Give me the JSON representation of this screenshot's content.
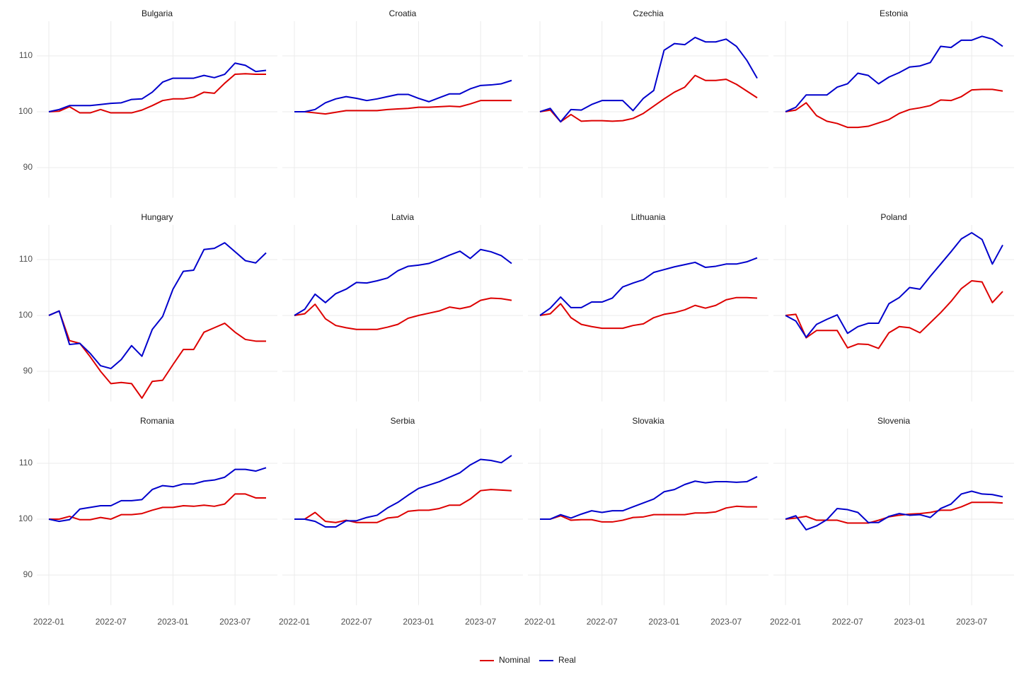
{
  "chart_data": {
    "type": "line",
    "x": [
      "2022-01",
      "2022-02",
      "2022-03",
      "2022-04",
      "2022-05",
      "2022-06",
      "2022-07",
      "2022-08",
      "2022-09",
      "2022-10",
      "2022-11",
      "2022-12",
      "2023-01",
      "2023-02",
      "2023-03",
      "2023-04",
      "2023-05",
      "2023-06",
      "2023-07",
      "2023-08",
      "2023-09",
      "2023-10"
    ],
    "xticks": [
      "2022-01",
      "2022-07",
      "2023-01",
      "2023-07"
    ],
    "ylim": [
      84.6,
      116.2
    ],
    "yticks": [
      90,
      100,
      110
    ],
    "grid": true,
    "legend": "bottom",
    "series": [
      {
        "name": "Nominal",
        "color": "#dd0000"
      },
      {
        "name": "Real",
        "color": "#0000cc"
      }
    ],
    "facets": [
      {
        "title": "Bulgaria",
        "values": [
          [
            100,
            100.1,
            100.9,
            99.8,
            99.8,
            100.4,
            99.8,
            99.8,
            99.8,
            100.3,
            101.1,
            102,
            102.3,
            102.3,
            102.6,
            103.5,
            103.3,
            105.1,
            106.7,
            106.8,
            106.7,
            106.7
          ],
          [
            100,
            100.4,
            101.1,
            101.1,
            101.1,
            101.3,
            101.5,
            101.6,
            102.2,
            102.3,
            103.5,
            105.3,
            106,
            106,
            106,
            106.5,
            106.1,
            106.7,
            108.7,
            108.3,
            107.2,
            107.4
          ]
        ]
      },
      {
        "title": "Croatia",
        "values": [
          [
            100,
            100,
            99.8,
            99.6,
            99.9,
            100.2,
            100.2,
            100.2,
            100.2,
            100.4,
            100.5,
            100.6,
            100.8,
            100.8,
            100.9,
            101,
            100.9,
            101.4,
            102,
            102,
            102,
            102
          ],
          [
            100,
            100,
            100.4,
            101.6,
            102.3,
            102.7,
            102.4,
            102,
            102.3,
            102.7,
            103.1,
            103.1,
            102.4,
            101.8,
            102.5,
            103.2,
            103.2,
            104.1,
            104.7,
            104.8,
            105,
            105.6
          ]
        ]
      },
      {
        "title": "Czechia",
        "values": [
          [
            100,
            100.3,
            98.2,
            99.5,
            98.3,
            98.4,
            98.4,
            98.3,
            98.4,
            98.8,
            99.7,
            101,
            102.3,
            103.5,
            104.4,
            106.5,
            105.6,
            105.6,
            105.8,
            104.9,
            103.7,
            102.5
          ],
          [
            100,
            100.6,
            98.2,
            100.4,
            100.3,
            101.3,
            102,
            102,
            102,
            100.2,
            102.4,
            103.8,
            111,
            112.2,
            112,
            113.3,
            112.5,
            112.5,
            113,
            111.7,
            109.2,
            106
          ]
        ]
      },
      {
        "title": "Estonia",
        "values": [
          [
            100,
            100.3,
            101.6,
            99.3,
            98.3,
            97.9,
            97.2,
            97.2,
            97.4,
            98,
            98.6,
            99.7,
            100.4,
            100.7,
            101.1,
            102.1,
            102,
            102.7,
            103.9,
            104,
            104,
            103.7
          ],
          [
            100,
            100.8,
            103,
            103,
            103,
            104.4,
            105,
            106.9,
            106.5,
            105,
            106.2,
            107,
            108,
            108.2,
            108.8,
            111.7,
            111.5,
            112.8,
            112.8,
            113.5,
            113,
            111.7
          ]
        ]
      },
      {
        "title": "Hungary",
        "values": [
          [
            100,
            100.8,
            95.5,
            95,
            92.6,
            90,
            87.8,
            88,
            87.8,
            85.2,
            88.2,
            88.4,
            91.2,
            93.9,
            93.9,
            97,
            97.8,
            98.6,
            97,
            95.7,
            95.4,
            95.4
          ],
          [
            100,
            100.8,
            94.8,
            95,
            93.2,
            91,
            90.5,
            92.1,
            94.6,
            92.7,
            97.5,
            99.8,
            104.7,
            107.9,
            108.1,
            111.8,
            112,
            113,
            111.4,
            109.8,
            109.4,
            111.2
          ]
        ]
      },
      {
        "title": "Latvia",
        "values": [
          [
            100,
            100.3,
            102,
            99.4,
            98.2,
            97.8,
            97.5,
            97.5,
            97.5,
            97.9,
            98.4,
            99.5,
            100,
            100.4,
            100.8,
            101.5,
            101.2,
            101.6,
            102.7,
            103.1,
            103,
            102.7
          ],
          [
            100,
            101.1,
            103.8,
            102.3,
            103.9,
            104.7,
            105.9,
            105.8,
            106.2,
            106.7,
            108,
            108.8,
            109,
            109.3,
            110,
            110.8,
            111.5,
            110.2,
            111.8,
            111.4,
            110.7,
            109.3
          ]
        ]
      },
      {
        "title": "Lithuania",
        "values": [
          [
            100,
            100.3,
            102.1,
            99.6,
            98.4,
            98,
            97.7,
            97.7,
            97.7,
            98.2,
            98.5,
            99.6,
            100.2,
            100.5,
            101,
            101.8,
            101.3,
            101.8,
            102.8,
            103.2,
            103.2,
            103.1
          ],
          [
            100,
            101.3,
            103.3,
            101.4,
            101.4,
            102.4,
            102.4,
            103.1,
            105.1,
            105.8,
            106.4,
            107.7,
            108.2,
            108.7,
            109.1,
            109.5,
            108.6,
            108.8,
            109.2,
            109.2,
            109.6,
            110.3
          ]
        ]
      },
      {
        "title": "Poland",
        "values": [
          [
            100,
            100.2,
            96,
            97.3,
            97.3,
            97.3,
            94.2,
            94.9,
            94.8,
            94.1,
            96.9,
            98,
            97.8,
            96.9,
            98.7,
            100.5,
            102.5,
            104.8,
            106.2,
            106,
            102.3,
            104.3
          ],
          [
            100,
            99,
            96.1,
            98.4,
            99.3,
            100.1,
            96.8,
            98,
            98.6,
            98.6,
            102.1,
            103.2,
            105,
            104.7,
            107,
            109.2,
            111.4,
            113.7,
            114.8,
            113.6,
            109.2,
            112.6
          ]
        ]
      },
      {
        "title": "Romania",
        "values": [
          [
            100,
            100,
            100.5,
            99.9,
            99.9,
            100.3,
            100,
            100.8,
            100.8,
            101,
            101.6,
            102.1,
            102.1,
            102.4,
            102.3,
            102.5,
            102.3,
            102.7,
            104.5,
            104.5,
            103.8,
            103.8
          ],
          [
            100,
            99.6,
            99.9,
            101.8,
            102.1,
            102.4,
            102.4,
            103.3,
            103.3,
            103.5,
            105.3,
            106,
            105.8,
            106.3,
            106.3,
            106.8,
            107,
            107.5,
            108.9,
            108.9,
            108.6,
            109.2
          ]
        ]
      },
      {
        "title": "Serbia",
        "values": [
          [
            100,
            100,
            101.2,
            99.6,
            99.4,
            99.8,
            99.4,
            99.4,
            99.4,
            100.2,
            100.4,
            101.4,
            101.6,
            101.6,
            101.9,
            102.5,
            102.5,
            103.6,
            105.1,
            105.3,
            105.2,
            105.1
          ],
          [
            100,
            100,
            99.6,
            98.6,
            98.6,
            99.7,
            99.7,
            100.3,
            100.7,
            102,
            103,
            104.3,
            105.5,
            106.1,
            106.7,
            107.5,
            108.3,
            109.7,
            110.7,
            110.5,
            110.1,
            111.4
          ]
        ]
      },
      {
        "title": "Slovakia",
        "values": [
          [
            100,
            100,
            100.6,
            99.8,
            99.9,
            99.9,
            99.5,
            99.5,
            99.8,
            100.3,
            100.4,
            100.8,
            100.8,
            100.8,
            100.8,
            101.1,
            101.1,
            101.3,
            102,
            102.3,
            102.2,
            102.2
          ],
          [
            100,
            100,
            100.8,
            100.2,
            100.9,
            101.5,
            101.2,
            101.5,
            101.5,
            102.2,
            102.9,
            103.6,
            104.9,
            105.3,
            106.2,
            106.8,
            106.5,
            106.7,
            106.7,
            106.6,
            106.7,
            107.6
          ]
        ]
      },
      {
        "title": "Slovenia",
        "values": [
          [
            100,
            100.2,
            100.5,
            99.8,
            99.8,
            99.8,
            99.3,
            99.3,
            99.3,
            99.8,
            100.4,
            100.7,
            100.9,
            101,
            101.2,
            101.6,
            101.6,
            102.2,
            103,
            103,
            103,
            102.9
          ],
          [
            100,
            100.6,
            98.1,
            98.8,
            99.9,
            101.9,
            101.7,
            101.2,
            99.4,
            99.4,
            100.5,
            101,
            100.7,
            100.8,
            100.3,
            101.9,
            102.7,
            104.5,
            105,
            104.5,
            104.4,
            104
          ]
        ]
      }
    ]
  }
}
